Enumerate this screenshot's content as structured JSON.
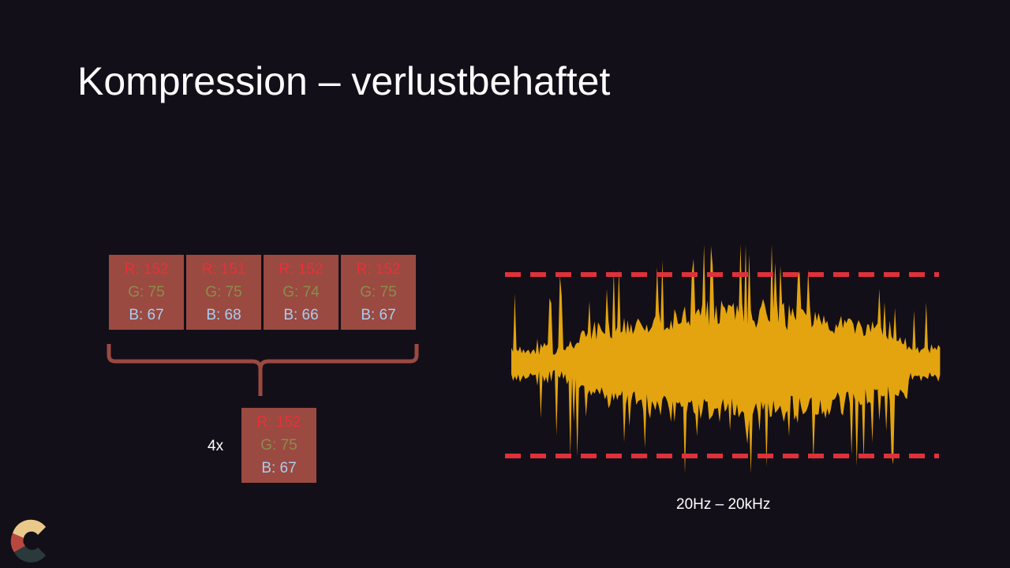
{
  "slide": {
    "title": "Kompression – verlustbehaftet"
  },
  "image_example": {
    "pixels": [
      {
        "r": "R: 152",
        "g": "G: 75",
        "b": "B: 67"
      },
      {
        "r": "R: 151",
        "g": "G: 75",
        "b": "B: 68"
      },
      {
        "r": "R: 152",
        "g": "G: 74",
        "b": "B: 66"
      },
      {
        "r": "R: 152",
        "g": "G: 75",
        "b": "B: 67"
      }
    ],
    "merged_pixel": {
      "r": "R: 152",
      "g": "G: 75",
      "b": "B: 67"
    },
    "multiplier": "4x"
  },
  "audio_example": {
    "frequency_range": "20Hz – 20kHz"
  },
  "colors": {
    "background": "#130f18",
    "pixel_fill": "#9a4a41",
    "red_text": "#e8303a",
    "green_text": "#8c8c4c",
    "blue_text": "#a8cdf0",
    "waveform": "#e3a40f",
    "limit_lines": "#e0313b",
    "brace": "#9a4a41"
  },
  "icons": {
    "logo": "c-logo-icon"
  }
}
